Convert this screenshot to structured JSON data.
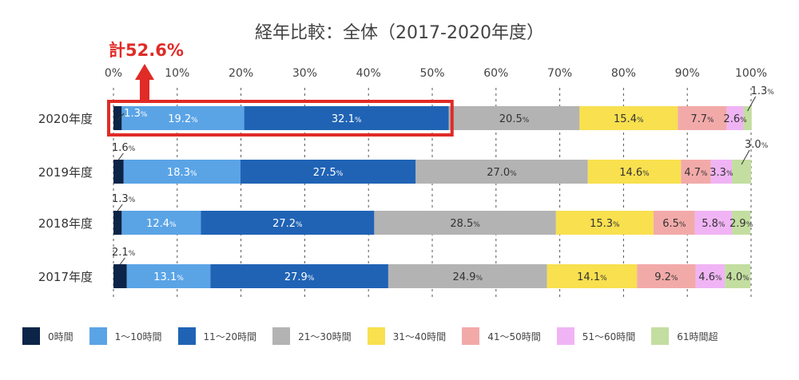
{
  "chart_data": {
    "type": "bar",
    "orientation": "horizontal",
    "stacked": true,
    "title": "経年比較：全体（2017-2020年度）",
    "xlabel": "",
    "ylabel": "",
    "xlim": [
      0,
      100
    ],
    "x_ticks": [
      "0%",
      "10%",
      "20%",
      "30%",
      "40%",
      "50%",
      "60%",
      "70%",
      "80%",
      "90%",
      "100%"
    ],
    "categories": [
      "2020年度",
      "2019年度",
      "2018年度",
      "2017年度"
    ],
    "series": [
      {
        "name": "0時間",
        "color": "#0b2447",
        "values": [
          1.3,
          1.6,
          1.3,
          2.1
        ],
        "labels": [
          "1.3%",
          "1.6%",
          "1.3%",
          "2.1%"
        ]
      },
      {
        "name": "1～10時間",
        "color": "#5aa4e6",
        "values": [
          19.2,
          18.3,
          12.4,
          13.1
        ],
        "labels": [
          "19.2%",
          "18.3%",
          "12.4%",
          "13.1%"
        ]
      },
      {
        "name": "11～20時間",
        "color": "#2063b5",
        "values": [
          32.1,
          27.5,
          27.2,
          27.9
        ],
        "labels": [
          "32.1%",
          "27.5%",
          "27.2%",
          "27.9%"
        ]
      },
      {
        "name": "21～30時間",
        "color": "#b3b3b3",
        "values": [
          20.5,
          27.0,
          28.5,
          24.9
        ],
        "labels": [
          "20.5%",
          "27.0%",
          "28.5%",
          "24.9%"
        ]
      },
      {
        "name": "31～40時間",
        "color": "#f8e04f",
        "values": [
          15.4,
          14.6,
          15.3,
          14.1
        ],
        "labels": [
          "15.4%",
          "14.6%",
          "15.3%",
          "14.1%"
        ]
      },
      {
        "name": "41～50時間",
        "color": "#f2aaa9",
        "values": [
          7.7,
          4.7,
          6.5,
          9.2
        ],
        "labels": [
          "7.7%",
          "4.7%",
          "6.5%",
          "9.2%"
        ]
      },
      {
        "name": "51～60時間",
        "color": "#f0b4f5",
        "values": [
          2.6,
          3.3,
          5.8,
          4.6
        ],
        "labels": [
          "2.6%",
          "3.3%",
          "5.8%",
          "4.6%"
        ]
      },
      {
        "name": "61時間超",
        "color": "#c3dea0",
        "values": [
          1.3,
          3.0,
          2.9,
          4.0
        ],
        "labels": [
          "1.3%",
          "3.0%",
          "2.9%",
          "4.0%"
        ]
      }
    ],
    "annotation": {
      "text": "計52.6%",
      "value": 52.6,
      "category": "2020年度",
      "color": "#e02b27"
    },
    "legend_position": "bottom"
  }
}
